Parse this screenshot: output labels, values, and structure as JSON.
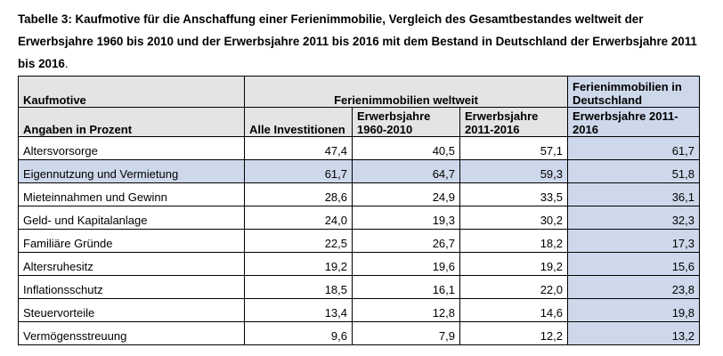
{
  "caption": {
    "bold": "Tabelle 3: Kaufmotive für die Anschaffung einer Ferienimmobilie, Vergleich des Gesamtbestandes weltweit der Erwerbsjahre 1960 bis 2010 und der Erwerbsjahre 2011 bis 2016 mit dem Bestand in Deutschland der Erwerbsjahre 2011 bis 2016",
    "end": "."
  },
  "header": {
    "col0_top": "Kaufmotive",
    "col0_bottom": "Angaben in Prozent",
    "group_world": "Ferienimmobilien weltweit",
    "group_de": "Ferienimmobilien in Deutschland",
    "sub_all": "Alle Investitionen",
    "sub_1960": "Erwerbsjahre 1960-2010",
    "sub_2011": "Erwerbsjahre 2011-2016",
    "sub_de": "Erwerbsjahre 2011-2016"
  },
  "rows": [
    {
      "label": "Altersvorsorge",
      "all": "47,4",
      "y1960": "40,5",
      "y2011": "57,1",
      "de": "61,7"
    },
    {
      "label": "Eigennutzung und Vermietung",
      "all": "61,7",
      "y1960": "64,7",
      "y2011": "59,3",
      "de": "51,8"
    },
    {
      "label": "Mieteinnahmen und Gewinn",
      "all": "28,6",
      "y1960": "24,9",
      "y2011": "33,5",
      "de": "36,1"
    },
    {
      "label": "Geld- und Kapitalanlage",
      "all": "24,0",
      "y1960": "19,3",
      "y2011": "30,2",
      "de": "32,3"
    },
    {
      "label": "Familiäre Gründe",
      "all": "22,5",
      "y1960": "26,7",
      "y2011": "18,2",
      "de": "17,3"
    },
    {
      "label": "Altersruhesitz",
      "all": "19,2",
      "y1960": "19,6",
      "y2011": "19,2",
      "de": "15,6"
    },
    {
      "label": "Inflationsschutz",
      "all": "18,5",
      "y1960": "16,1",
      "y2011": "22,0",
      "de": "23,8"
    },
    {
      "label": "Steuervorteile",
      "all": "13,4",
      "y1960": "12,8",
      "y2011": "14,6",
      "de": "19,8"
    },
    {
      "label": "Vermögensstreuung",
      "all": "9,6",
      "y1960": "7,9",
      "y2011": "12,2",
      "de": "13,2"
    }
  ]
}
